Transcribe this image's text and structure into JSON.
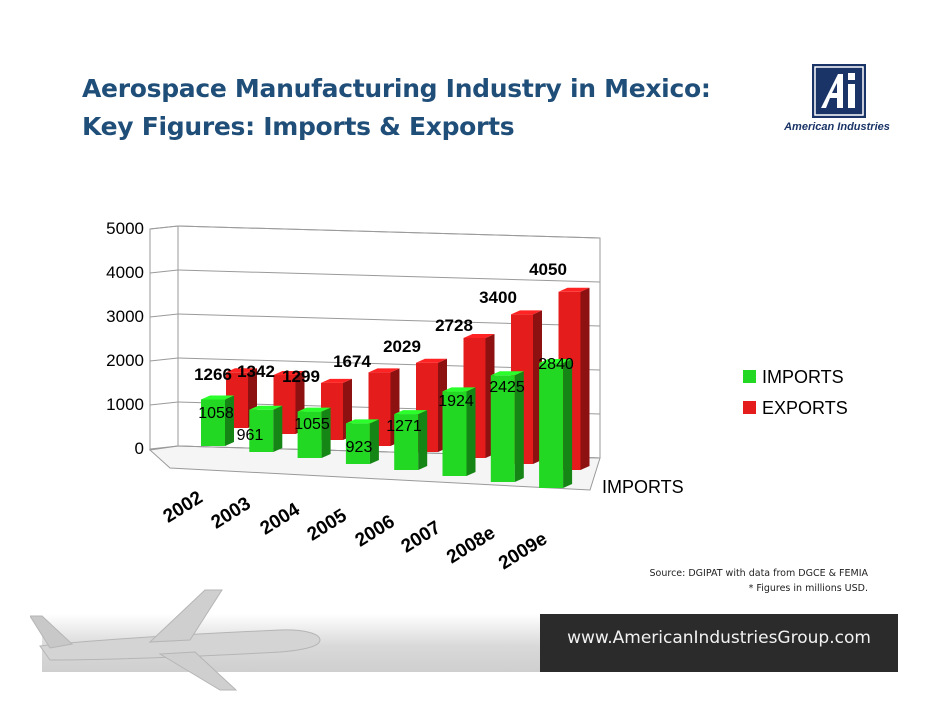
{
  "slide": {
    "title_line1": "Aerospace Manufacturing Industry in Mexico:",
    "title_line2": "Key Figures: Imports & Exports",
    "logo_text": "American Industries",
    "source_line1": "Source: DGIPAT with data from DGCE & FEMIA",
    "source_line2": "* Figures in millions USD.",
    "footer_url": "www.AmericanIndustriesGroup.com"
  },
  "colors": {
    "imports": "#22d822",
    "exports": "#e41c1c",
    "title": "#1f4e79",
    "logo": "#1a3467"
  },
  "chart_data": {
    "type": "bar",
    "categories": [
      "2002",
      "2003",
      "2004",
      "2005",
      "2006",
      "2007",
      "2008e",
      "2009e"
    ],
    "series": [
      {
        "name": "IMPORTS",
        "values": [
          1058,
          961,
          1055,
          923,
          1271,
          1924,
          2425,
          2840
        ]
      },
      {
        "name": "EXPORTS",
        "values": [
          1266,
          1342,
          1299,
          1674,
          2029,
          2728,
          3400,
          4050
        ]
      }
    ],
    "depth_axis_label": "IMPORTS",
    "yticks": [
      0,
      1000,
      2000,
      3000,
      4000,
      5000
    ],
    "ylim": [
      0,
      5000
    ],
    "grid": true,
    "legend_position": "right"
  }
}
